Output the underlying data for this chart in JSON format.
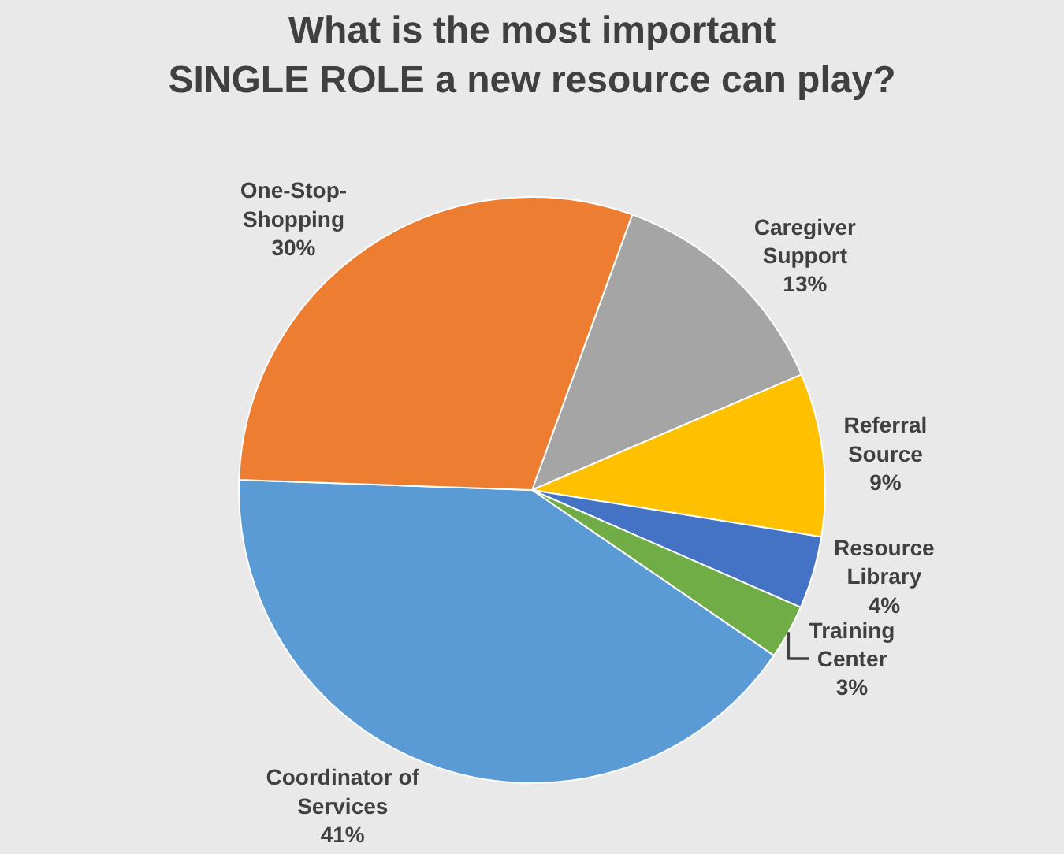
{
  "chart_data": {
    "type": "pie",
    "title": "What is the most important\nSINGLE ROLE a new resource can play?",
    "categories": [
      "Caregiver Support",
      "Referral Source",
      "Resource Library",
      "Training Center",
      "Coordinator of Services",
      "One-Stop-Shopping"
    ],
    "values": [
      13,
      9,
      4,
      3,
      41,
      30
    ],
    "value_labels": [
      "13%",
      "9%",
      "4%",
      "3%",
      "41%",
      "30%"
    ],
    "colors": [
      "#a5a5a5",
      "#ffc000",
      "#4472c4",
      "#70ad47",
      "#5b9bd5",
      "#ed7d31"
    ],
    "legend": false
  }
}
